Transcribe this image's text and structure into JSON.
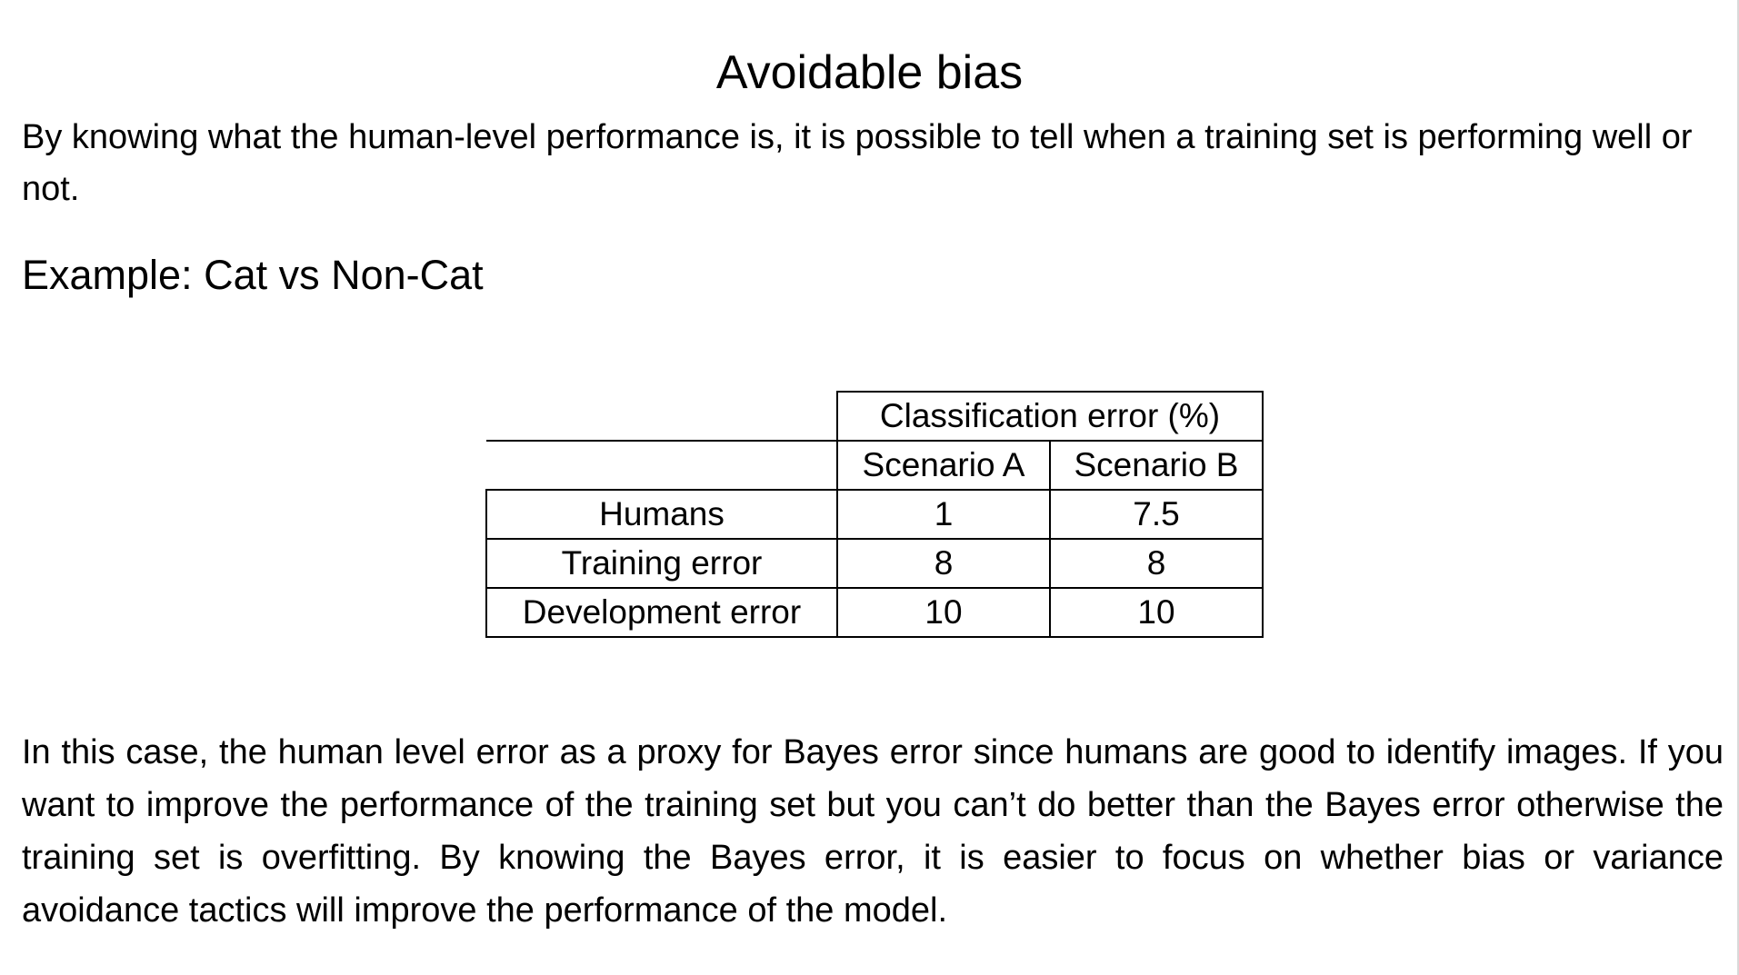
{
  "document": {
    "title": "Avoidable bias",
    "intro": "By knowing what the human-level performance is, it is possible to tell when a training set is performing well or not.",
    "example_heading": "Example: Cat vs Non-Cat",
    "table": {
      "group_header": "Classification error (%)",
      "columns": [
        "Scenario A",
        "Scenario B"
      ],
      "rows": [
        {
          "label": "Humans",
          "a": "1",
          "b": "7.5"
        },
        {
          "label": "Training error",
          "a": "8",
          "b": "8"
        },
        {
          "label": "Development error",
          "a": "10",
          "b": "10"
        }
      ]
    },
    "body": "In this case, the human level error as a proxy for Bayes error since humans are good to identify images. If you want to improve the performance of the training set but you can’t do better than the Bayes error otherwise the training set is overfitting. By knowing the Bayes error, it is easier to focus on whether bias or variance avoidance tactics will improve the performance of the model."
  }
}
